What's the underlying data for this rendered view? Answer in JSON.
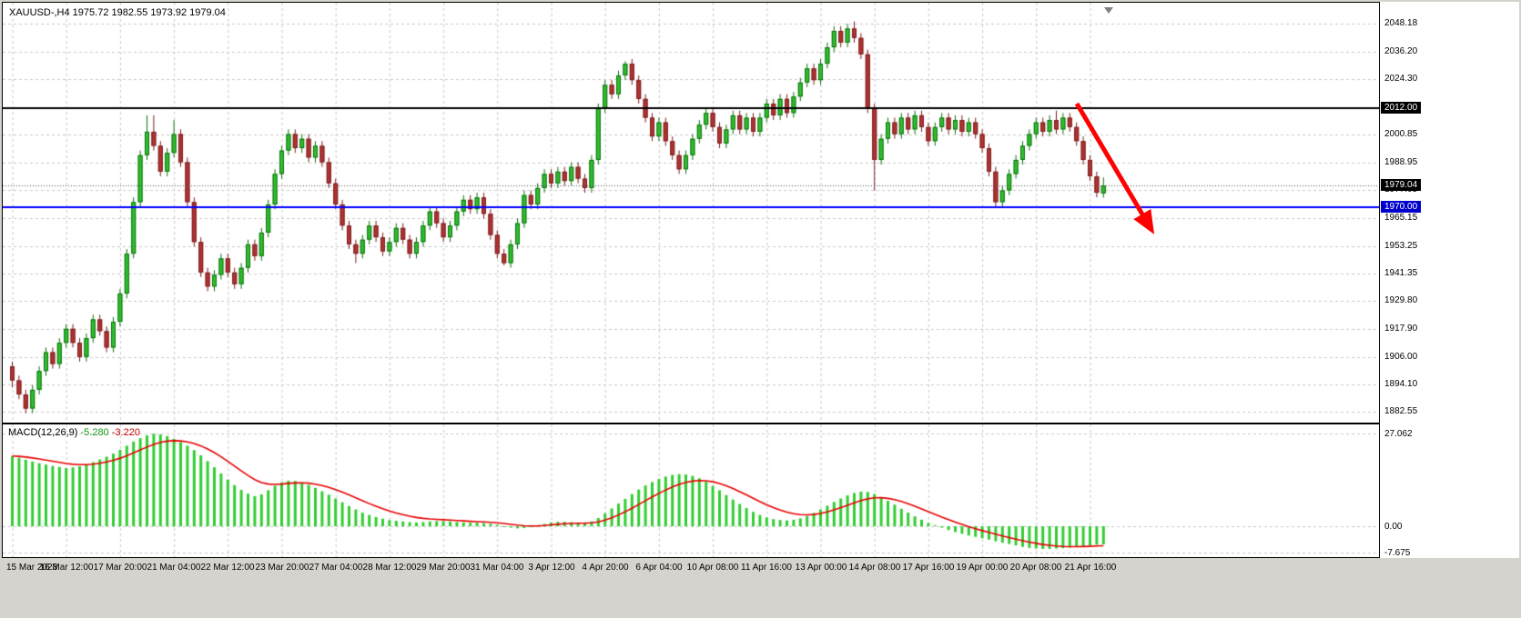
{
  "window": {
    "title": "XAUUSD-,H4 1975.72 1982.55 1973.92 1979.04"
  },
  "markers": {
    "hline_black": "2012.00",
    "bid": "1979.04",
    "hline_blue": "1970.00"
  },
  "macd_panel": {
    "label_name": "MACD(12,26,9)",
    "macd_value": "-5.280",
    "signal_value": "-3.220"
  },
  "colors": {
    "chrome": "#d6d3ce",
    "plot_bg": "#ffffff",
    "grid": "#c9c9c9",
    "up_fill": "#2fbe2f",
    "up_border": "#0f6f0f",
    "down_fill": "#b03333",
    "down_border": "#7a1d1d",
    "hist": "#32cd32",
    "signal": "#e80000",
    "hline_black": "#000000",
    "hline_blue": "#0000ff",
    "bid_line": "#555555",
    "arrow": "#ff0000"
  },
  "chart_data": {
    "type": "candlestick+macd_histogram",
    "symbol": "XAUUSD-",
    "timeframe": "H4",
    "current_ohlc": {
      "open": 1975.72,
      "high": 1982.55,
      "low": 1973.92,
      "close": 1979.04
    },
    "price_view_range": [
      1878,
      2057
    ],
    "price_ticks": [
      "2048.18",
      "2036.20",
      "2024.30",
      "2012.40",
      "2000.85",
      "1988.95",
      "1977.05",
      "1965.15",
      "1953.25",
      "1941.35",
      "1929.80",
      "1917.90",
      "1906.00",
      "1894.10",
      "1882.55"
    ],
    "time_ticks": [
      "15 Mar 2023",
      "16 Mar 12:00",
      "17 Mar 20:00",
      "21 Mar 04:00",
      "22 Mar 12:00",
      "23 Mar 20:00",
      "27 Mar 04:00",
      "28 Mar 12:00",
      "29 Mar 20:00",
      "31 Mar 04:00",
      "3 Apr 12:00",
      "4 Apr 20:00",
      "6 Apr 04:00",
      "10 Apr 08:00",
      "11 Apr 16:00",
      "13 Apr 00:00",
      "14 Apr 08:00",
      "17 Apr 16:00",
      "19 Apr 00:00",
      "20 Apr 08:00",
      "21 Apr 16:00"
    ],
    "bars_per_tick": 8,
    "hlines": [
      {
        "price": 2012.0,
        "color": "#000000",
        "label": "2012.00"
      },
      {
        "price": 1970.0,
        "color": "#0000ff",
        "label": "1970.00"
      }
    ],
    "bid_price": 1979.04,
    "arrow": {
      "from_bar": 158,
      "from_price": 2014,
      "to_bar": 169,
      "to_price": 1961
    },
    "ohlc": [
      [
        1902,
        1904,
        1893,
        1896
      ],
      [
        1896,
        1898,
        1888,
        1890
      ],
      [
        1890,
        1892,
        1882,
        1884
      ],
      [
        1884,
        1894,
        1882,
        1892
      ],
      [
        1892,
        1902,
        1890,
        1900
      ],
      [
        1900,
        1910,
        1898,
        1908
      ],
      [
        1908,
        1910,
        1901,
        1903
      ],
      [
        1903,
        1914,
        1901,
        1912
      ],
      [
        1912,
        1920,
        1910,
        1918
      ],
      [
        1918,
        1920,
        1910,
        1912
      ],
      [
        1912,
        1914,
        1904,
        1906
      ],
      [
        1906,
        1916,
        1904,
        1914
      ],
      [
        1914,
        1924,
        1912,
        1922
      ],
      [
        1922,
        1924,
        1915,
        1917
      ],
      [
        1917,
        1919,
        1908,
        1910
      ],
      [
        1910,
        1923,
        1908,
        1921
      ],
      [
        1921,
        1935,
        1919,
        1933
      ],
      [
        1933,
        1952,
        1931,
        1950
      ],
      [
        1950,
        1974,
        1948,
        1972
      ],
      [
        1972,
        1994,
        1970,
        1992
      ],
      [
        1992,
        2009,
        1990,
        2002
      ],
      [
        2002,
        2009,
        1994,
        1996
      ],
      [
        1996,
        1998,
        1983,
        1985
      ],
      [
        1985,
        1995,
        1983,
        1993
      ],
      [
        1993,
        2007,
        1991,
        2001
      ],
      [
        2001,
        2003,
        1987,
        1989
      ],
      [
        1989,
        1991,
        1970,
        1972
      ],
      [
        1972,
        1974,
        1953,
        1955
      ],
      [
        1955,
        1957,
        1940,
        1942
      ],
      [
        1942,
        1944,
        1934,
        1936
      ],
      [
        1936,
        1943,
        1934,
        1941
      ],
      [
        1941,
        1950,
        1939,
        1948
      ],
      [
        1948,
        1950,
        1940,
        1942
      ],
      [
        1942,
        1944,
        1935,
        1937
      ],
      [
        1937,
        1946,
        1935,
        1944
      ],
      [
        1944,
        1956,
        1942,
        1954
      ],
      [
        1954,
        1956,
        1947,
        1949
      ],
      [
        1949,
        1961,
        1947,
        1959
      ],
      [
        1959,
        1973,
        1957,
        1971
      ],
      [
        1971,
        1986,
        1969,
        1984
      ],
      [
        1984,
        1996,
        1982,
        1994
      ],
      [
        1994,
        2003,
        1992,
        2001
      ],
      [
        2001,
        2003,
        1993,
        1995
      ],
      [
        1995,
        2001,
        1993,
        1999
      ],
      [
        1999,
        2001,
        1989,
        1991
      ],
      [
        1991,
        1998,
        1989,
        1996
      ],
      [
        1996,
        1998,
        1987,
        1989
      ],
      [
        1989,
        1991,
        1978,
        1980
      ],
      [
        1980,
        1982,
        1969,
        1971
      ],
      [
        1971,
        1973,
        1960,
        1962
      ],
      [
        1962,
        1964,
        1952,
        1954
      ],
      [
        1954,
        1956,
        1946,
        1950
      ],
      [
        1950,
        1958,
        1948,
        1956
      ],
      [
        1956,
        1964,
        1954,
        1962
      ],
      [
        1962,
        1964,
        1955,
        1957
      ],
      [
        1957,
        1959,
        1949,
        1951
      ],
      [
        1951,
        1957,
        1949,
        1955
      ],
      [
        1955,
        1963,
        1953,
        1961
      ],
      [
        1961,
        1963,
        1954,
        1956
      ],
      [
        1956,
        1958,
        1948,
        1950
      ],
      [
        1950,
        1957,
        1948,
        1955
      ],
      [
        1955,
        1964,
        1953,
        1962
      ],
      [
        1962,
        1970,
        1960,
        1968
      ],
      [
        1968,
        1970,
        1961,
        1963
      ],
      [
        1963,
        1965,
        1955,
        1957
      ],
      [
        1957,
        1964,
        1955,
        1962
      ],
      [
        1962,
        1970,
        1960,
        1968
      ],
      [
        1968,
        1975,
        1966,
        1973
      ],
      [
        1973,
        1975,
        1967,
        1969
      ],
      [
        1969,
        1976,
        1967,
        1974
      ],
      [
        1974,
        1976,
        1965,
        1967
      ],
      [
        1967,
        1969,
        1956,
        1958
      ],
      [
        1958,
        1960,
        1948,
        1950
      ],
      [
        1950,
        1952,
        1945,
        1946
      ],
      [
        1946,
        1956,
        1944,
        1954
      ],
      [
        1954,
        1965,
        1952,
        1963
      ],
      [
        1963,
        1977,
        1961,
        1975
      ],
      [
        1975,
        1977,
        1969,
        1971
      ],
      [
        1971,
        1980,
        1969,
        1978
      ],
      [
        1978,
        1986,
        1976,
        1984
      ],
      [
        1984,
        1986,
        1978,
        1980
      ],
      [
        1980,
        1987,
        1978,
        1985
      ],
      [
        1985,
        1987,
        1979,
        1981
      ],
      [
        1981,
        1989,
        1979,
        1987
      ],
      [
        1987,
        1989,
        1980,
        1982
      ],
      [
        1982,
        1984,
        1976,
        1978
      ],
      [
        1978,
        1992,
        1976,
        1990
      ],
      [
        1990,
        2014,
        1988,
        2012
      ],
      [
        2012,
        2024,
        2010,
        2022
      ],
      [
        2022,
        2024,
        2016,
        2018
      ],
      [
        2018,
        2028,
        2016,
        2026
      ],
      [
        2026,
        2032,
        2024,
        2031
      ],
      [
        2031,
        2033,
        2022,
        2024
      ],
      [
        2024,
        2026,
        2014,
        2016
      ],
      [
        2016,
        2018,
        2006,
        2008
      ],
      [
        2008,
        2010,
        1998,
        2000
      ],
      [
        2000,
        2008,
        1998,
        2006
      ],
      [
        2006,
        2008,
        1996,
        1998
      ],
      [
        1998,
        2000,
        1990,
        1992
      ],
      [
        1992,
        1994,
        1984,
        1986
      ],
      [
        1986,
        1994,
        1984,
        1992
      ],
      [
        1992,
        2001,
        1990,
        1999
      ],
      [
        1999,
        2007,
        1997,
        2005
      ],
      [
        2005,
        2012,
        2003,
        2010
      ],
      [
        2010,
        2012,
        2002,
        2004
      ],
      [
        2004,
        2006,
        1995,
        1997
      ],
      [
        1997,
        2005,
        1995,
        2003
      ],
      [
        2003,
        2011,
        2001,
        2009
      ],
      [
        2009,
        2011,
        2001,
        2003
      ],
      [
        2003,
        2010,
        2001,
        2008
      ],
      [
        2008,
        2010,
        2000,
        2002
      ],
      [
        2002,
        2010,
        2000,
        2008
      ],
      [
        2008,
        2016,
        2006,
        2014
      ],
      [
        2014,
        2016,
        2007,
        2009
      ],
      [
        2009,
        2018,
        2007,
        2016
      ],
      [
        2016,
        2018,
        2008,
        2010
      ],
      [
        2010,
        2019,
        2008,
        2017
      ],
      [
        2017,
        2025,
        2015,
        2023
      ],
      [
        2023,
        2031,
        2021,
        2029
      ],
      [
        2029,
        2031,
        2022,
        2024
      ],
      [
        2024,
        2033,
        2022,
        2031
      ],
      [
        2031,
        2040,
        2029,
        2038
      ],
      [
        2038,
        2047,
        2036,
        2045
      ],
      [
        2045,
        2047,
        2038,
        2040
      ],
      [
        2040,
        2048,
        2038,
        2046
      ],
      [
        2046,
        2049,
        2040,
        2042
      ],
      [
        2042,
        2044,
        2033,
        2035
      ],
      [
        2035,
        2037,
        2010,
        2012
      ],
      [
        2012,
        2014,
        1977,
        1990
      ],
      [
        1990,
        2001,
        1988,
        1999
      ],
      [
        1999,
        2008,
        1997,
        2006
      ],
      [
        2006,
        2008,
        1999,
        2001
      ],
      [
        2001,
        2010,
        1999,
        2008
      ],
      [
        2008,
        2010,
        2001,
        2003
      ],
      [
        2003,
        2011,
        2001,
        2009
      ],
      [
        2009,
        2011,
        2002,
        2004
      ],
      [
        2004,
        2006,
        1996,
        1998
      ],
      [
        1998,
        2006,
        1996,
        2004
      ],
      [
        2004,
        2010,
        2002,
        2008
      ],
      [
        2008,
        2010,
        2001,
        2003
      ],
      [
        2003,
        2009,
        2001,
        2007
      ],
      [
        2007,
        2009,
        2000,
        2002
      ],
      [
        2002,
        2008,
        2000,
        2006
      ],
      [
        2006,
        2008,
        1999,
        2001
      ],
      [
        2001,
        2003,
        1993,
        1995
      ],
      [
        1995,
        1997,
        1983,
        1985
      ],
      [
        1985,
        1987,
        1970,
        1972
      ],
      [
        1972,
        1979,
        1970,
        1977
      ],
      [
        1977,
        1986,
        1975,
        1984
      ],
      [
        1984,
        1992,
        1982,
        1990
      ],
      [
        1990,
        1998,
        1988,
        1996
      ],
      [
        1996,
        2003,
        1994,
        2001
      ],
      [
        2001,
        2008,
        1999,
        2006
      ],
      [
        2006,
        2008,
        2000,
        2002
      ],
      [
        2002,
        2009,
        2000,
        2007
      ],
      [
        2007,
        2011,
        2001,
        2003
      ],
      [
        2003,
        2010,
        2001,
        2008
      ],
      [
        2008,
        2010,
        2002,
        2004
      ],
      [
        2004,
        2006,
        1996,
        1998
      ],
      [
        1998,
        2000,
        1988,
        1990
      ],
      [
        1990,
        1992,
        1981,
        1983
      ],
      [
        1983,
        1985,
        1974,
        1976
      ],
      [
        1975.72,
        1982.55,
        1973.92,
        1979.04
      ]
    ],
    "macd": {
      "params": "12,26,9",
      "signal_period": 9,
      "axis_ticks": [
        "27.062",
        "0.00",
        "-7.675"
      ],
      "values": [
        20.5,
        20.0,
        19.4,
        18.9,
        18.4,
        18.0,
        17.6,
        17.3,
        17.0,
        17.2,
        17.5,
        18.0,
        18.7,
        19.5,
        20.3,
        21.2,
        22.3,
        23.5,
        24.7,
        25.7,
        26.5,
        27.0,
        26.8,
        26.3,
        25.5,
        24.6,
        23.5,
        22.2,
        20.7,
        19.0,
        17.2,
        15.4,
        13.6,
        12.0,
        10.6,
        9.5,
        8.8,
        9.3,
        10.5,
        11.8,
        12.8,
        13.3,
        13.2,
        12.8,
        12.1,
        11.2,
        10.2,
        9.2,
        8.1,
        7.0,
        5.9,
        4.9,
        4.0,
        3.3,
        2.7,
        2.2,
        1.8,
        1.6,
        1.4,
        1.2,
        1.1,
        1.2,
        1.4,
        1.5,
        1.5,
        1.4,
        1.2,
        1.1,
        1.0,
        1.0,
        0.9,
        0.7,
        0.4,
        0.0,
        -0.4,
        -0.6,
        -0.5,
        -0.2,
        0.2,
        0.7,
        1.1,
        1.3,
        1.3,
        1.2,
        1.1,
        1.0,
        1.4,
        2.4,
        3.8,
        5.2,
        6.6,
        8.0,
        9.4,
        10.7,
        11.9,
        12.9,
        13.8,
        14.5,
        15.0,
        15.2,
        15.1,
        14.7,
        14.0,
        13.0,
        11.8,
        10.5,
        9.1,
        7.8,
        6.5,
        5.3,
        4.2,
        3.3,
        2.6,
        2.1,
        1.8,
        1.7,
        1.9,
        2.3,
        3.0,
        3.9,
        4.9,
        6.0,
        7.1,
        8.1,
        9.0,
        9.7,
        10.1,
        10.0,
        9.4,
        8.5,
        7.4,
        6.3,
        5.1,
        4.0,
        2.9,
        1.9,
        1.0,
        0.3,
        -0.4,
        -1.1,
        -1.7,
        -2.2,
        -2.7,
        -3.1,
        -3.5,
        -3.9,
        -4.4,
        -4.8,
        -5.2,
        -5.6,
        -6.0,
        -6.3,
        -6.5,
        -6.6,
        -6.6,
        -6.5,
        -6.4,
        -6.2,
        -6.0,
        -5.8,
        -5.6,
        -5.4,
        -5.28
      ]
    }
  }
}
